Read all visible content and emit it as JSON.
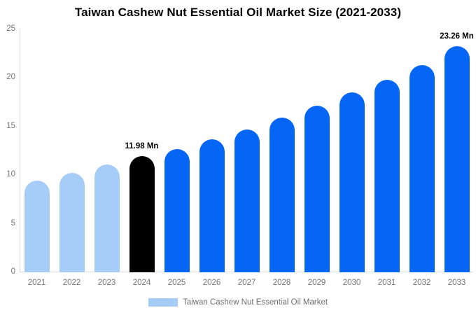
{
  "title": "Taiwan Cashew Nut Essential Oil Market Size (2021-2033)",
  "legend": {
    "label": "Taiwan Cashew Nut Essential Oil Market"
  },
  "colors": {
    "historical_bar": "#a6cdf8",
    "current_bar": "#000000",
    "forecast_bar": "#0566f6",
    "axis_line": "#d9d9d9",
    "tick_label": "#757575",
    "annotation_text": "#000000",
    "legend_text": "#6e6e6e",
    "background": "#ffffff"
  },
  "chart_data": {
    "type": "bar",
    "title": "Taiwan Cashew Nut Essential Oil Market Size (2021-2033)",
    "unit": "Mn",
    "categories": [
      "2021",
      "2022",
      "2023",
      "2024",
      "2025",
      "2026",
      "2027",
      "2028",
      "2029",
      "2030",
      "2031",
      "2032",
      "2033"
    ],
    "values": [
      9.4,
      10.2,
      11.1,
      11.98,
      12.7,
      13.7,
      14.7,
      15.9,
      17.1,
      18.5,
      19.8,
      21.3,
      23.26
    ],
    "bar_roles": [
      "historical",
      "historical",
      "historical",
      "current",
      "forecast",
      "forecast",
      "forecast",
      "forecast",
      "forecast",
      "forecast",
      "forecast",
      "forecast",
      "forecast"
    ],
    "annotations": [
      {
        "category": "2024",
        "label": "11.98 Mn"
      },
      {
        "category": "2033",
        "label": "23.26 Mn"
      }
    ],
    "xlabel": "",
    "ylabel": "",
    "ylim": [
      0,
      25
    ],
    "yticks": [
      0,
      5,
      10,
      15,
      20,
      25
    ],
    "grid": false,
    "legend_position": "bottom",
    "series_name": "Taiwan Cashew Nut Essential Oil Market"
  }
}
